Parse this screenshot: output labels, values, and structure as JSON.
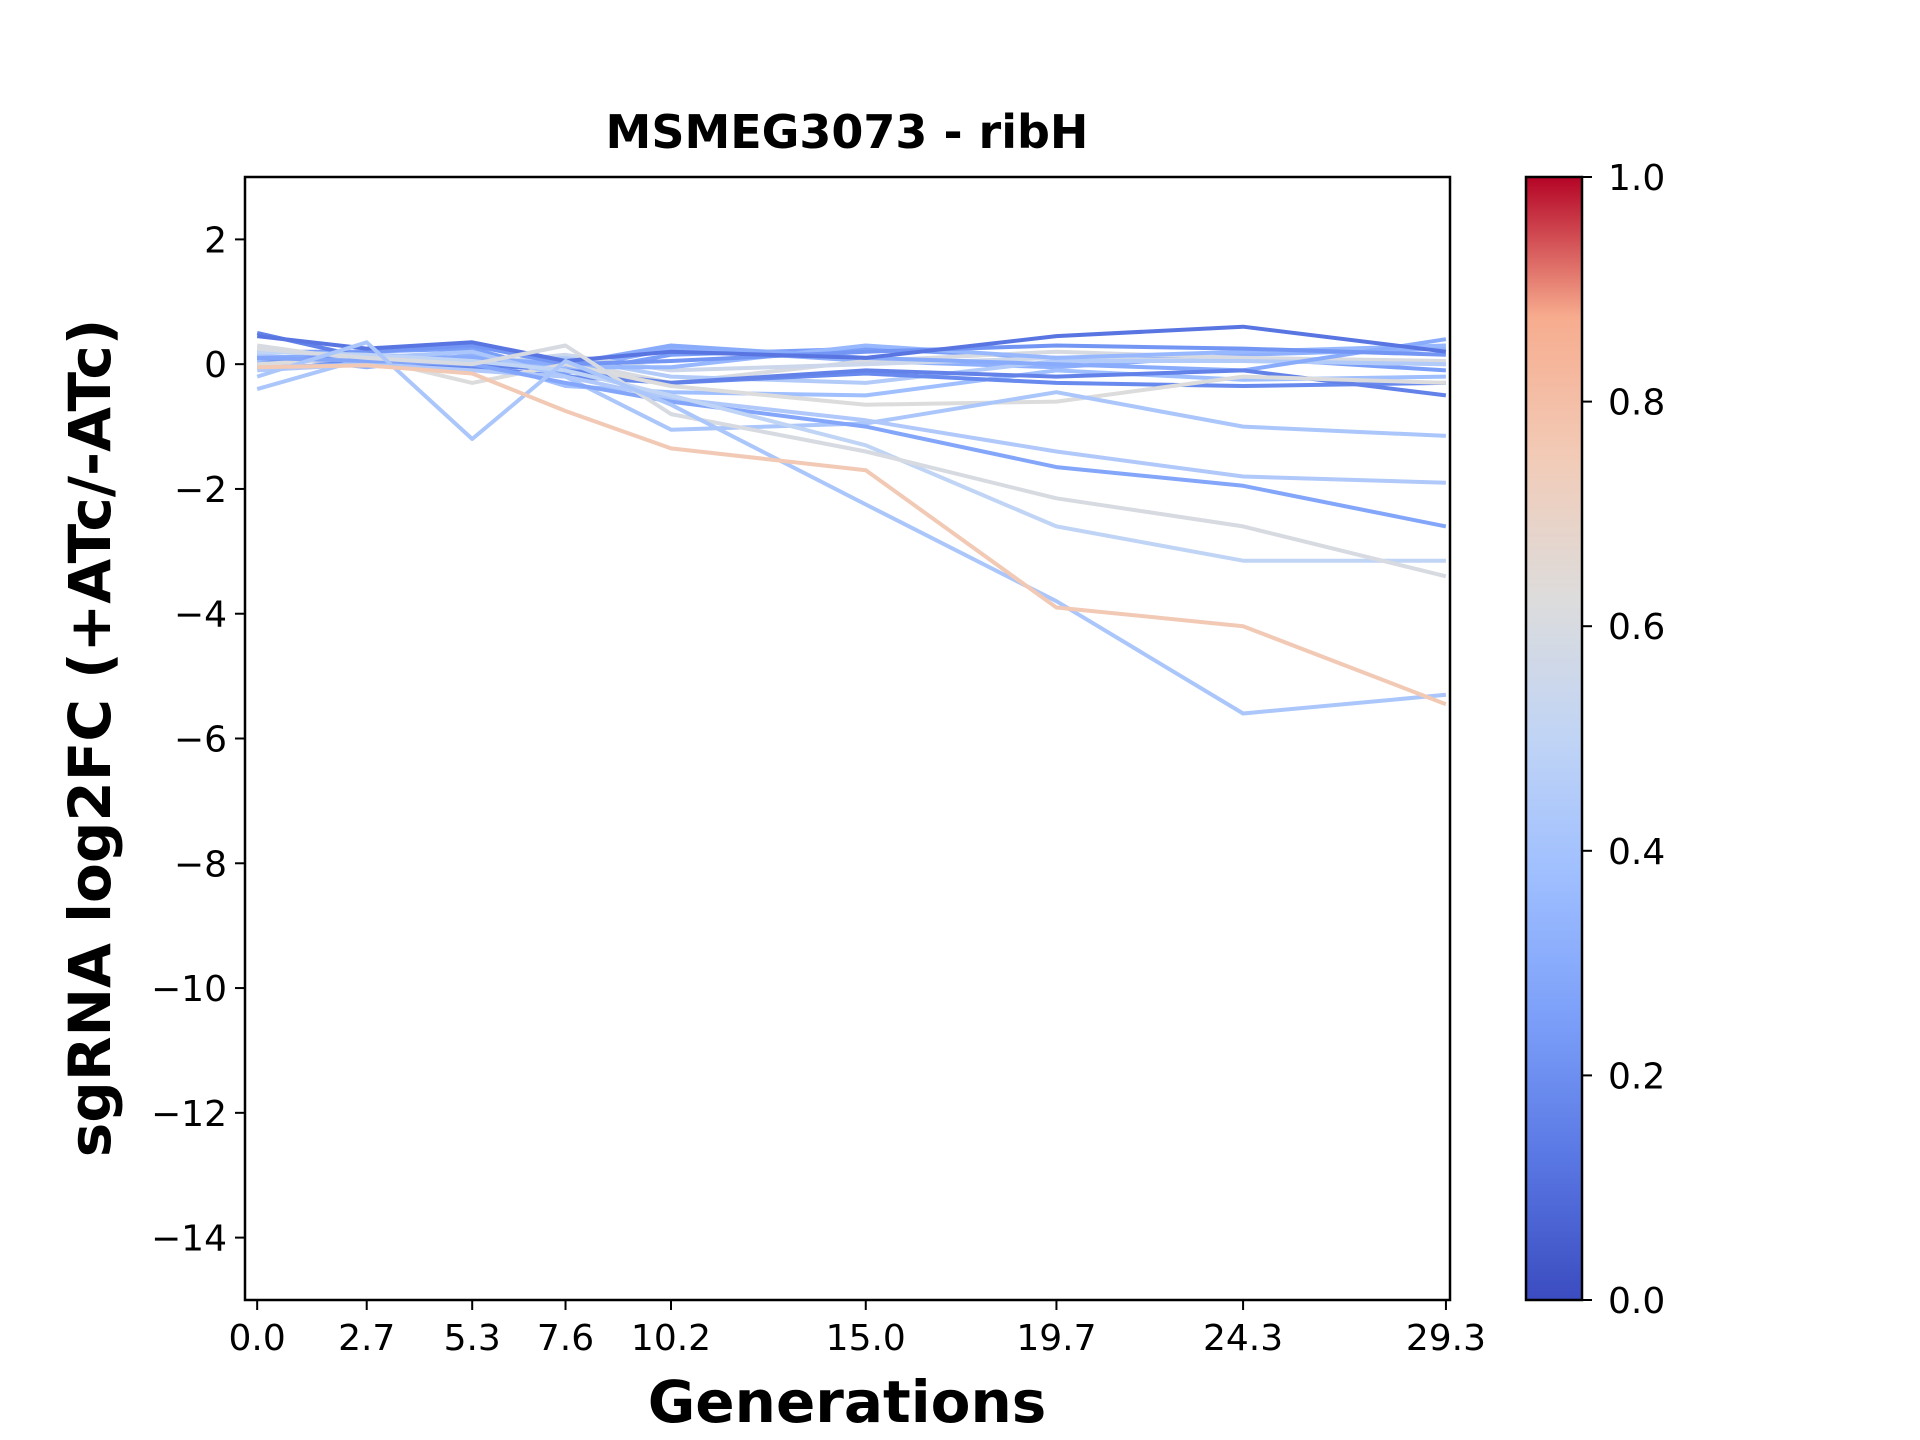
{
  "chart_data": {
    "type": "line",
    "title": "MSMEG3073 - ribH",
    "xlabel": "Generations",
    "ylabel": "sgRNA log2FC (+ATc/-ATc)",
    "x": [
      0.0,
      2.7,
      5.3,
      7.6,
      10.2,
      15.0,
      19.7,
      24.3,
      29.3
    ],
    "x_tick_labels": [
      "0.0",
      "2.7",
      "5.3",
      "7.6",
      "10.2",
      "15.0",
      "19.7",
      "24.3",
      "29.3"
    ],
    "xlim": [
      -0.3,
      29.4
    ],
    "ylim": [
      -15,
      3
    ],
    "y_ticks": [
      2,
      0,
      -2,
      -4,
      -6,
      -8,
      -10,
      -12,
      -14
    ],
    "y_tick_labels": [
      "2",
      "0",
      "−2",
      "−4",
      "−6",
      "−8",
      "−10",
      "−12",
      "−14"
    ],
    "colormap": "coolwarm",
    "colorbar": {
      "min": 0.0,
      "max": 1.0,
      "ticks": [
        0.0,
        0.2,
        0.4,
        0.6,
        0.8,
        1.0
      ],
      "tick_labels": [
        "0.0",
        "0.2",
        "0.4",
        "0.6",
        "0.8",
        "1.0"
      ]
    },
    "series": [
      {
        "color_value": 0.76,
        "values": [
          -0.05,
          -0.02,
          -0.15,
          -0.75,
          -1.35,
          -1.7,
          -3.9,
          -4.2,
          -5.45
        ]
      },
      {
        "color_value": 0.42,
        "values": [
          -0.2,
          0.35,
          -1.2,
          0.05,
          -0.65,
          -2.25,
          -3.8,
          -5.6,
          -5.3
        ]
      },
      {
        "color_value": 0.6,
        "values": [
          0.25,
          0.1,
          0.0,
          0.3,
          -0.8,
          -1.4,
          -2.15,
          -2.6,
          -3.4
        ]
      },
      {
        "color_value": 0.5,
        "values": [
          0.2,
          0.15,
          0.05,
          -0.1,
          -0.5,
          -1.3,
          -2.6,
          -3.15,
          -3.15
        ]
      },
      {
        "color_value": 0.28,
        "values": [
          0.1,
          0.05,
          0.0,
          -0.3,
          -0.6,
          -1.0,
          -1.65,
          -1.95,
          -2.6
        ]
      },
      {
        "color_value": 0.44,
        "values": [
          -0.1,
          0.0,
          -0.1,
          -0.2,
          -0.55,
          -0.9,
          -1.4,
          -1.8,
          -1.9
        ]
      },
      {
        "color_value": 0.42,
        "values": [
          -0.4,
          0.1,
          0.2,
          -0.2,
          -1.05,
          -0.95,
          -0.45,
          -1.0,
          -1.15
        ]
      },
      {
        "color_value": 0.62,
        "values": [
          0.0,
          0.1,
          -0.3,
          0.0,
          -0.35,
          -0.65,
          -0.6,
          -0.2,
          -0.3
        ]
      },
      {
        "color_value": 0.12,
        "values": [
          0.45,
          0.25,
          0.35,
          0.05,
          0.2,
          0.1,
          0.45,
          0.6,
          0.2
        ]
      },
      {
        "color_value": 0.16,
        "values": [
          0.5,
          0.1,
          0.0,
          -0.1,
          -0.3,
          -0.1,
          -0.2,
          -0.1,
          -0.5
        ]
      },
      {
        "color_value": 0.22,
        "values": [
          0.0,
          0.2,
          0.3,
          0.0,
          0.05,
          0.2,
          0.3,
          0.25,
          0.15
        ]
      },
      {
        "color_value": 0.3,
        "values": [
          0.1,
          0.15,
          0.1,
          0.0,
          0.3,
          0.1,
          0.0,
          -0.1,
          0.4
        ]
      },
      {
        "color_value": 0.35,
        "values": [
          -0.05,
          0.0,
          0.05,
          -0.05,
          -0.05,
          0.3,
          0.1,
          0.2,
          0.3
        ]
      },
      {
        "color_value": 0.18,
        "values": [
          0.1,
          0.0,
          -0.05,
          -0.2,
          -0.3,
          -0.15,
          -0.3,
          -0.35,
          -0.3
        ]
      },
      {
        "color_value": 0.38,
        "values": [
          0.05,
          0.05,
          0.1,
          -0.35,
          -0.45,
          -0.5,
          -0.1,
          -0.25,
          -0.2
        ]
      },
      {
        "color_value": 0.45,
        "values": [
          0.15,
          0.0,
          0.0,
          0.1,
          -0.2,
          -0.3,
          0.05,
          0.05,
          0.0
        ]
      },
      {
        "color_value": 0.55,
        "values": [
          0.05,
          0.1,
          0.0,
          0.15,
          -0.1,
          0.0,
          0.1,
          0.05,
          0.0
        ]
      },
      {
        "color_value": 0.6,
        "values": [
          0.3,
          0.05,
          0.05,
          0.05,
          -0.3,
          0.05,
          0.2,
          0.1,
          0.05
        ]
      },
      {
        "color_value": 0.25,
        "values": [
          0.2,
          0.2,
          0.25,
          -0.15,
          0.15,
          0.25,
          0.1,
          0.1,
          -0.1
        ]
      },
      {
        "color_value": 0.32,
        "values": [
          0.15,
          -0.05,
          0.15,
          -0.1,
          0.25,
          0.05,
          -0.05,
          0.15,
          0.25
        ]
      }
    ]
  }
}
